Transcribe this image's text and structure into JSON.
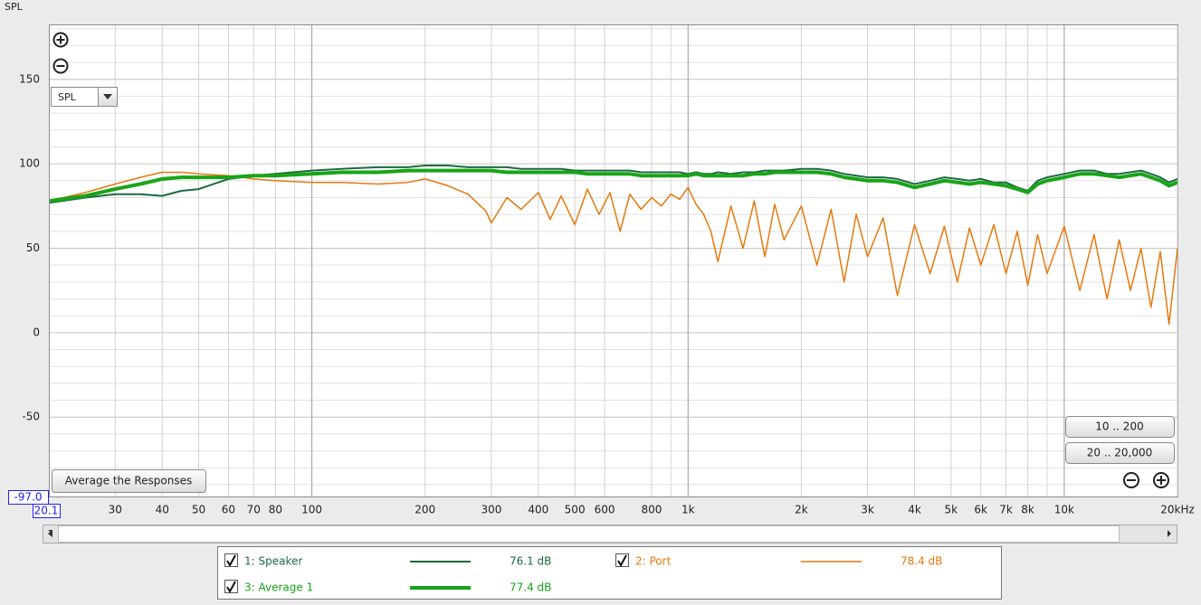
{
  "chart_data": {
    "type": "line",
    "y_label": "SPL",
    "x": [
      20.1,
      25,
      30,
      35,
      40,
      45,
      50,
      60,
      70,
      80,
      100,
      120,
      150,
      180,
      200,
      230,
      260,
      290,
      300,
      330,
      360,
      400,
      430,
      460,
      500,
      540,
      580,
      620,
      660,
      700,
      750,
      800,
      850,
      900,
      950,
      1000,
      1050,
      1100,
      1150,
      1200,
      1300,
      1400,
      1500,
      1600,
      1700,
      1800,
      2000,
      2200,
      2400,
      2600,
      2800,
      3000,
      3300,
      3600,
      4000,
      4400,
      4800,
      5200,
      5600,
      6000,
      6500,
      7000,
      7500,
      8000,
      8500,
      9000,
      10000,
      11000,
      12000,
      13000,
      14000,
      15000,
      16000,
      17000,
      18000,
      19000,
      20000
    ],
    "series": [
      {
        "name": "1: Speaker",
        "level": "76.1 dB",
        "color": "#1b6b3e",
        "width": 2,
        "values": [
          77,
          80,
          82,
          82,
          81,
          84,
          85,
          91,
          93,
          94,
          96,
          97,
          98,
          98,
          99,
          99,
          98,
          98,
          98,
          98,
          97,
          97,
          97,
          97,
          96,
          96,
          96,
          96,
          96,
          96,
          95,
          95,
          95,
          95,
          95,
          94,
          95,
          94,
          94,
          95,
          94,
          95,
          95,
          96,
          96,
          96,
          97,
          97,
          96,
          94,
          93,
          92,
          92,
          91,
          88,
          90,
          92,
          91,
          90,
          91,
          89,
          89,
          86,
          84,
          90,
          92,
          94,
          96,
          96,
          94,
          94,
          95,
          96,
          94,
          92,
          89,
          91
        ]
      },
      {
        "name": "2: Port",
        "level": "78.4 dB",
        "color": "#e8780e",
        "width": 1.5,
        "values": [
          78,
          83,
          88,
          92,
          95,
          95,
          94,
          93,
          91,
          90,
          89,
          89,
          88,
          89,
          91,
          87,
          82,
          72,
          65,
          80,
          73,
          83,
          67,
          81,
          64,
          85,
          70,
          83,
          60,
          82,
          73,
          80,
          75,
          82,
          79,
          86,
          76,
          70,
          60,
          42,
          75,
          50,
          78,
          45,
          76,
          55,
          75,
          40,
          73,
          30,
          70,
          45,
          68,
          22,
          64,
          35,
          63,
          30,
          62,
          40,
          64,
          35,
          60,
          28,
          58,
          35,
          63,
          25,
          58,
          20,
          55,
          25,
          50,
          15,
          48,
          5,
          50
        ]
      },
      {
        "name": "3: Average 1",
        "level": "77.4 dB",
        "color": "#18a418",
        "width": 4,
        "values": [
          78,
          81,
          85,
          88,
          91,
          92,
          92,
          92,
          93,
          93,
          94,
          95,
          95,
          96,
          96,
          96,
          96,
          96,
          96,
          95,
          95,
          95,
          95,
          95,
          95,
          94,
          94,
          94,
          94,
          94,
          93,
          93,
          93,
          93,
          93,
          93,
          94,
          93,
          93,
          93,
          93,
          93,
          94,
          94,
          95,
          95,
          95,
          95,
          94,
          92,
          91,
          90,
          90,
          89,
          86,
          88,
          90,
          89,
          88,
          89,
          88,
          87,
          85,
          83,
          88,
          90,
          92,
          94,
          94,
          93,
          92,
          93,
          94,
          92,
          90,
          87,
          89
        ]
      }
    ],
    "xlim": [
      20.1,
      20000
    ],
    "log_x": true,
    "xticks": [
      30,
      40,
      50,
      60,
      70,
      80,
      100,
      200,
      300,
      400,
      500,
      600,
      800,
      {
        "value": 1000,
        "label": "1k"
      },
      {
        "value": 2000,
        "label": "2k"
      },
      {
        "value": 3000,
        "label": "3k"
      },
      {
        "value": 4000,
        "label": "4k"
      },
      {
        "value": 5000,
        "label": "5k"
      },
      {
        "value": 6000,
        "label": "6k"
      },
      {
        "value": 7000,
        "label": "7k"
      },
      {
        "value": 8000,
        "label": "8k"
      },
      {
        "value": 10000,
        "label": "10k"
      },
      {
        "value": 20000,
        "label": "20kHz"
      }
    ],
    "x_minor_grid": [
      90,
      900,
      9000
    ],
    "ylim": [
      -97,
      182
    ],
    "yticks": [
      -50,
      0,
      50,
      100,
      150
    ],
    "y_minor_grid": [
      -90,
      -80,
      -70,
      -60,
      -40,
      -30,
      -20,
      -10,
      10,
      20,
      30,
      40,
      60,
      70,
      80,
      90,
      110,
      120,
      130,
      140,
      160,
      170,
      180
    ],
    "grid": true
  },
  "ui": {
    "y_min_box": "-97.0",
    "dropdown": "SPL",
    "average_button": "Average the Responses",
    "zoom_low_button": "10 .. 200",
    "zoom_full_button": "20 .. 20,000"
  }
}
